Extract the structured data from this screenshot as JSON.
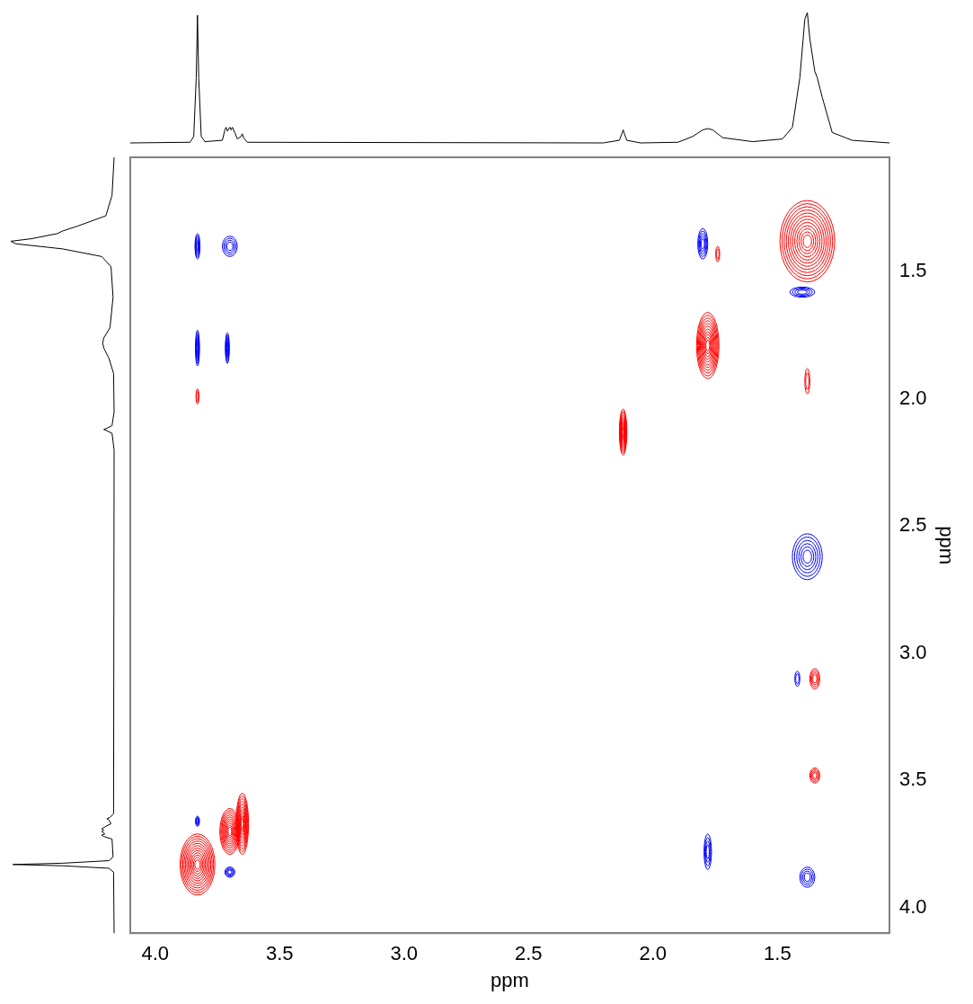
{
  "chart_data": {
    "type": "contour",
    "x_label": "ppm",
    "y_label": "ppm",
    "xlim": [
      4.1,
      1.05
    ],
    "ylim": [
      1.05,
      4.1
    ],
    "xticks": [
      {
        "value": 4,
        "label": "4.0"
      },
      3.5,
      {
        "value": 3,
        "label": "3.0"
      },
      2.5,
      {
        "value": 2,
        "label": "2.0"
      },
      1.5
    ],
    "yticks": [
      1.5,
      {
        "value": 2,
        "label": "2.0"
      },
      2.5,
      {
        "value": 3,
        "label": "3.0"
      },
      3.5,
      {
        "value": 4,
        "label": "4.0"
      }
    ],
    "grid": false,
    "series": [
      {
        "color": "#ff0000",
        "values": [
          {
            "x": 3.83,
            "y": 3.83,
            "width_x": 0.07,
            "width_y": 0.12,
            "intensity": 1.0
          },
          {
            "x": 3.7,
            "y": 3.7,
            "width_x": 0.04,
            "width_y": 0.09,
            "intensity": 0.8
          },
          {
            "x": 3.65,
            "y": 3.67,
            "width_x": 0.025,
            "width_y": 0.12,
            "intensity": 0.8
          },
          {
            "x": 2.12,
            "y": 2.13,
            "width_x": 0.015,
            "width_y": 0.09,
            "intensity": 0.8
          },
          {
            "x": 1.78,
            "y": 1.79,
            "width_x": 0.045,
            "width_y": 0.13,
            "intensity": 0.9
          },
          {
            "x": 1.38,
            "y": 1.38,
            "width_x": 0.11,
            "width_y": 0.16,
            "intensity": 1.0
          },
          {
            "x": 3.83,
            "y": 1.99,
            "width_x": 0.006,
            "width_y": 0.03,
            "intensity": 0.2
          },
          {
            "x": 1.74,
            "y": 1.43,
            "width_x": 0.008,
            "width_y": 0.03,
            "intensity": 0.2
          },
          {
            "x": 1.35,
            "y": 3.1,
            "width_x": 0.02,
            "width_y": 0.04,
            "intensity": 0.3
          },
          {
            "x": 1.35,
            "y": 3.48,
            "width_x": 0.02,
            "width_y": 0.03,
            "intensity": 0.3
          },
          {
            "x": 1.38,
            "y": 1.93,
            "width_x": 0.01,
            "width_y": 0.05,
            "intensity": 0.2
          }
        ]
      },
      {
        "color": "#0000ff",
        "values": [
          {
            "x": 3.83,
            "y": 1.4,
            "width_x": 0.01,
            "width_y": 0.05,
            "intensity": 0.4
          },
          {
            "x": 3.7,
            "y": 1.4,
            "width_x": 0.03,
            "width_y": 0.04,
            "intensity": 0.3
          },
          {
            "x": 3.83,
            "y": 1.8,
            "width_x": 0.008,
            "width_y": 0.07,
            "intensity": 0.5
          },
          {
            "x": 3.71,
            "y": 1.8,
            "width_x": 0.008,
            "width_y": 0.06,
            "intensity": 0.5
          },
          {
            "x": 1.8,
            "y": 1.39,
            "width_x": 0.02,
            "width_y": 0.06,
            "intensity": 0.4
          },
          {
            "x": 1.38,
            "y": 2.62,
            "width_x": 0.06,
            "width_y": 0.09,
            "intensity": 0.5
          },
          {
            "x": 1.78,
            "y": 3.78,
            "width_x": 0.015,
            "width_y": 0.07,
            "intensity": 0.3
          },
          {
            "x": 3.83,
            "y": 3.66,
            "width_x": 0.008,
            "width_y": 0.02,
            "intensity": 0.3
          },
          {
            "x": 3.7,
            "y": 3.86,
            "width_x": 0.02,
            "width_y": 0.02,
            "intensity": 0.3
          },
          {
            "x": 1.42,
            "y": 3.1,
            "width_x": 0.01,
            "width_y": 0.03,
            "intensity": 0.2
          },
          {
            "x": 1.38,
            "y": 3.88,
            "width_x": 0.03,
            "width_y": 0.04,
            "intensity": 0.3
          },
          {
            "x": 1.4,
            "y": 1.58,
            "width_x": 0.05,
            "width_y": 0.02,
            "intensity": 0.3
          }
        ]
      }
    ],
    "projection": {
      "x": [
        4.1,
        3.86,
        3.845,
        3.835,
        3.83,
        3.825,
        3.815,
        3.8,
        3.73,
        3.72,
        3.715,
        3.71,
        3.7,
        3.695,
        3.69,
        3.68,
        3.67,
        3.655,
        3.65,
        3.645,
        3.63,
        2.2,
        2.135,
        2.125,
        2.12,
        2.115,
        2.105,
        2.05,
        1.9,
        1.84,
        1.8,
        1.78,
        1.76,
        1.72,
        1.6,
        1.48,
        1.44,
        1.41,
        1.39,
        1.38,
        1.37,
        1.35,
        1.34,
        1.32,
        1.28,
        1.2,
        1.05
      ],
      "values": [
        0,
        0.005,
        0.05,
        0.5,
        0.98,
        0.5,
        0.05,
        0.01,
        0.02,
        0.1,
        0.12,
        0.09,
        0.12,
        0.1,
        0.12,
        0.08,
        0.03,
        0.05,
        0.07,
        0.04,
        0.005,
        0,
        0.02,
        0.07,
        0.1,
        0.07,
        0.02,
        0,
        0.005,
        0.05,
        0.1,
        0.11,
        0.1,
        0.04,
        0.01,
        0.03,
        0.12,
        0.5,
        0.95,
        1.0,
        0.8,
        0.55,
        0.5,
        0.35,
        0.08,
        0.02,
        0
      ]
    }
  }
}
